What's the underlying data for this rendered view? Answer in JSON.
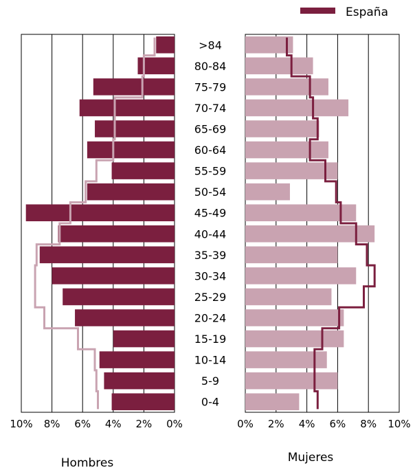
{
  "legend": {
    "label": "España"
  },
  "colors": {
    "local": "#7b1f3f",
    "local_light": "#c9a3b1",
    "espana_men": "#c9a3b1",
    "espana_women": "#7b1f3f",
    "grid": "#000000"
  },
  "chart_data": {
    "type": "bar",
    "subtype": "population-pyramid",
    "categories": [
      ">84",
      "80-84",
      "75-79",
      "70-74",
      "65-69",
      "60-64",
      "55-59",
      "50-54",
      "45-49",
      "40-44",
      "35-39",
      "30-34",
      "25-29",
      "20-24",
      "15-19",
      "10-14",
      "5-9",
      "0-4"
    ],
    "men": {
      "label": "Hombres",
      "values": [
        1.2,
        2.4,
        5.3,
        6.2,
        5.2,
        5.7,
        4.1,
        5.7,
        9.7,
        7.6,
        8.8,
        8.0,
        7.3,
        6.5,
        4.0,
        4.9,
        4.6,
        4.1
      ],
      "espana": [
        1.3,
        2.0,
        2.1,
        3.9,
        3.9,
        4.0,
        5.1,
        5.8,
        6.8,
        7.5,
        9.0,
        9.1,
        9.1,
        8.5,
        6.3,
        5.2,
        5.1,
        5.0
      ]
    },
    "women": {
      "label": "Mujeres",
      "values": [
        3.1,
        4.4,
        5.4,
        6.7,
        4.8,
        5.4,
        6.0,
        2.9,
        7.2,
        8.4,
        6.0,
        7.2,
        5.6,
        6.4,
        6.4,
        5.3,
        6.0,
        3.5
      ],
      "espana": [
        2.7,
        3.0,
        4.2,
        4.4,
        4.7,
        4.2,
        5.2,
        5.9,
        6.2,
        7.2,
        7.9,
        8.4,
        7.7,
        6.1,
        5.0,
        4.5,
        4.5,
        4.7
      ]
    },
    "xlim": [
      0,
      10
    ],
    "xticks": [
      "10%",
      "8%",
      "6%",
      "4%",
      "2%",
      "0%"
    ],
    "xticks_right": [
      "0%",
      "2%",
      "4%",
      "6%",
      "8%",
      "10%"
    ],
    "legend_position": "top-right"
  }
}
